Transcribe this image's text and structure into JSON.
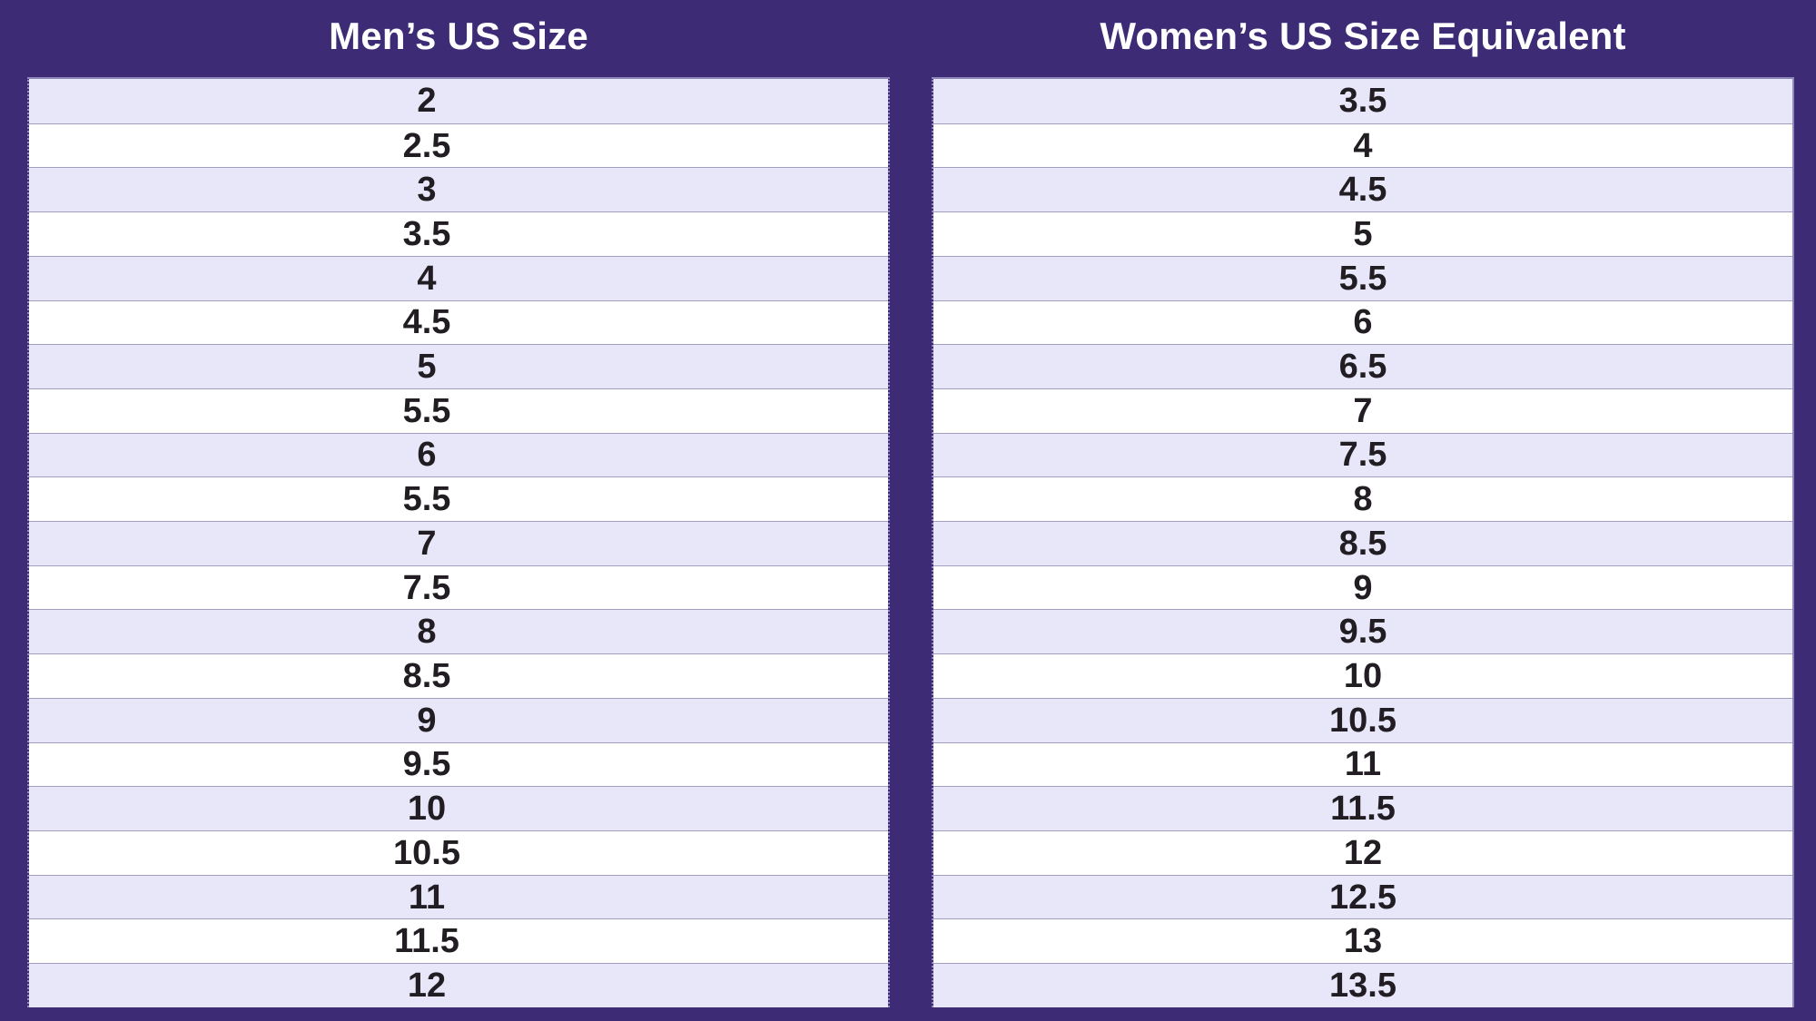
{
  "table": {
    "mens_header": "Men’s US Size",
    "womens_header": "Women’s US Size Equivalent",
    "mens_sizes": [
      "2",
      "2.5",
      "3",
      "3.5",
      "4",
      "4.5",
      "5",
      "5.5",
      "6",
      "5.5",
      "7",
      "7.5",
      "8",
      "8.5",
      "9",
      "9.5",
      "10",
      "10.5",
      "11",
      "11.5",
      "12"
    ],
    "womens_sizes": [
      "3.5",
      "4",
      "4.5",
      "5",
      "5.5",
      "6",
      "6.5",
      "7",
      "7.5",
      "8",
      "8.5",
      "9",
      "9.5",
      "10",
      "10.5",
      "11",
      "11.5",
      "12",
      "12.5",
      "13",
      "13.5"
    ]
  },
  "colors": {
    "background": "#3D2B75",
    "stripe_row": "#E8E7F9",
    "white_row": "#FFFFFF",
    "row_divider": "#A49DC2",
    "table_border": "#8E87B9",
    "header_text": "#FFFFFF",
    "cell_text": "#211D23"
  },
  "chart_data": {
    "type": "table",
    "title": "Men's to Women's US shoe size conversion",
    "columns": [
      "Men’s US Size",
      "Women’s US Size Equivalent"
    ],
    "rows": [
      [
        "2",
        "3.5"
      ],
      [
        "2.5",
        "4"
      ],
      [
        "3",
        "4.5"
      ],
      [
        "3.5",
        "5"
      ],
      [
        "4",
        "5.5"
      ],
      [
        "4.5",
        "6"
      ],
      [
        "5",
        "6.5"
      ],
      [
        "5.5",
        "7"
      ],
      [
        "6",
        "7.5"
      ],
      [
        "5.5",
        "8"
      ],
      [
        "7",
        "8.5"
      ],
      [
        "7.5",
        "9"
      ],
      [
        "8",
        "9.5"
      ],
      [
        "8.5",
        "10"
      ],
      [
        "9",
        "10.5"
      ],
      [
        "9.5",
        "11"
      ],
      [
        "10",
        "11.5"
      ],
      [
        "10.5",
        "12"
      ],
      [
        "11",
        "12.5"
      ],
      [
        "11.5",
        "13"
      ],
      [
        "12",
        "13.5"
      ]
    ],
    "layout": {
      "stripes": "alternating lavender/white starting lavender",
      "header_position": "above each table on purple background"
    }
  }
}
